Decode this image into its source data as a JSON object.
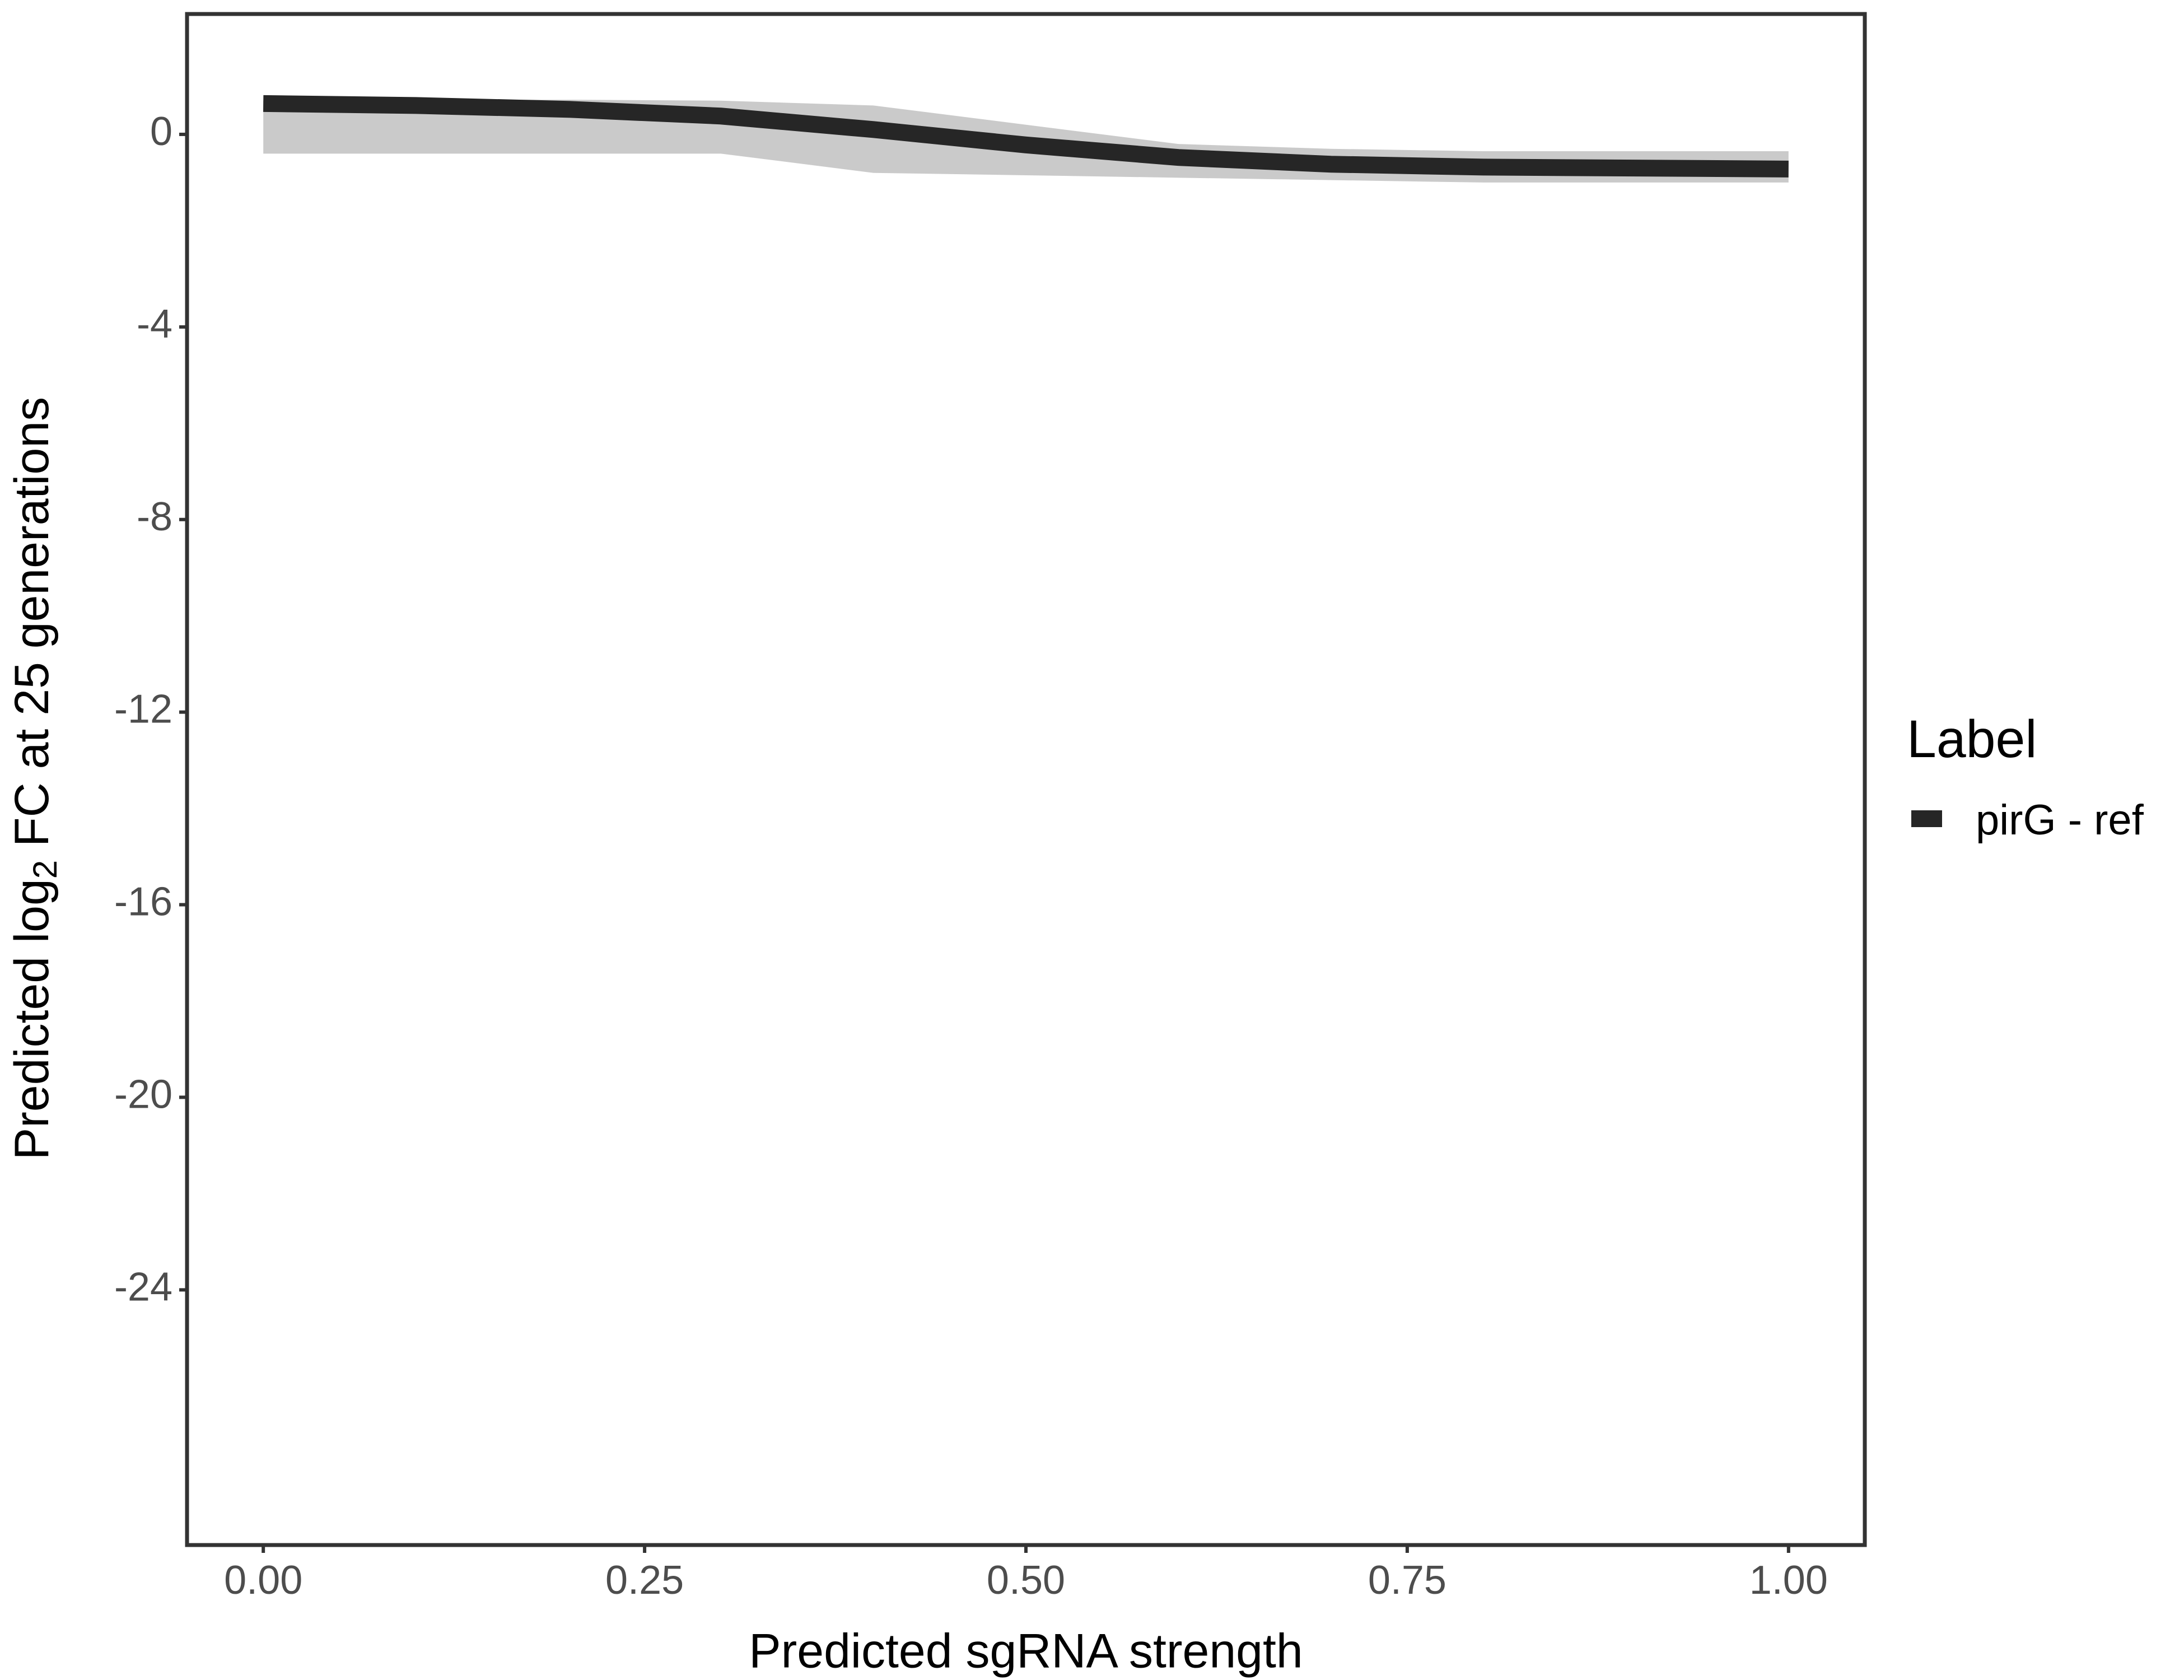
{
  "chart_data": {
    "type": "line",
    "x_label": "Predicted sgRNA strength",
    "y_label": [
      "Predicted  log",
      "2",
      " FC at 25 generations"
    ],
    "x": [
      0,
      0.1,
      0.2,
      0.3,
      0.4,
      0.5,
      0.6,
      0.7,
      0.8,
      0.9,
      1.0
    ],
    "series": [
      {
        "name": "pirG - ref",
        "color": "#262626",
        "values": [
          0.64,
          0.6,
          0.52,
          0.38,
          0.1,
          -0.22,
          -0.48,
          -0.62,
          -0.68,
          -0.7,
          -0.72
        ]
      }
    ],
    "band": {
      "color": "#9e9e9e",
      "upper": [
        0.7,
        0.72,
        0.72,
        0.7,
        0.6,
        0.2,
        -0.2,
        -0.3,
        -0.35,
        -0.35,
        -0.35
      ],
      "lower": [
        -0.4,
        -0.4,
        -0.4,
        -0.4,
        -0.8,
        -0.85,
        -0.9,
        -0.95,
        -1.0,
        -1.0,
        -1.0
      ]
    },
    "legend_title": "Label",
    "legend_position": "right",
    "xlim": [
      -0.05,
      1.05
    ],
    "ylim": [
      -29.3,
      2.5
    ],
    "xticks": [
      {
        "value": 0,
        "label": "0.00"
      },
      {
        "value": 0.25,
        "label": "0.25"
      },
      {
        "value": 0.5,
        "label": "0.50"
      },
      {
        "value": 0.75,
        "label": "0.75"
      },
      {
        "value": 1,
        "label": "1.00"
      }
    ],
    "yticks": [
      0,
      -4,
      -8,
      -12,
      -16,
      -20,
      -24
    ],
    "grid": false
  }
}
